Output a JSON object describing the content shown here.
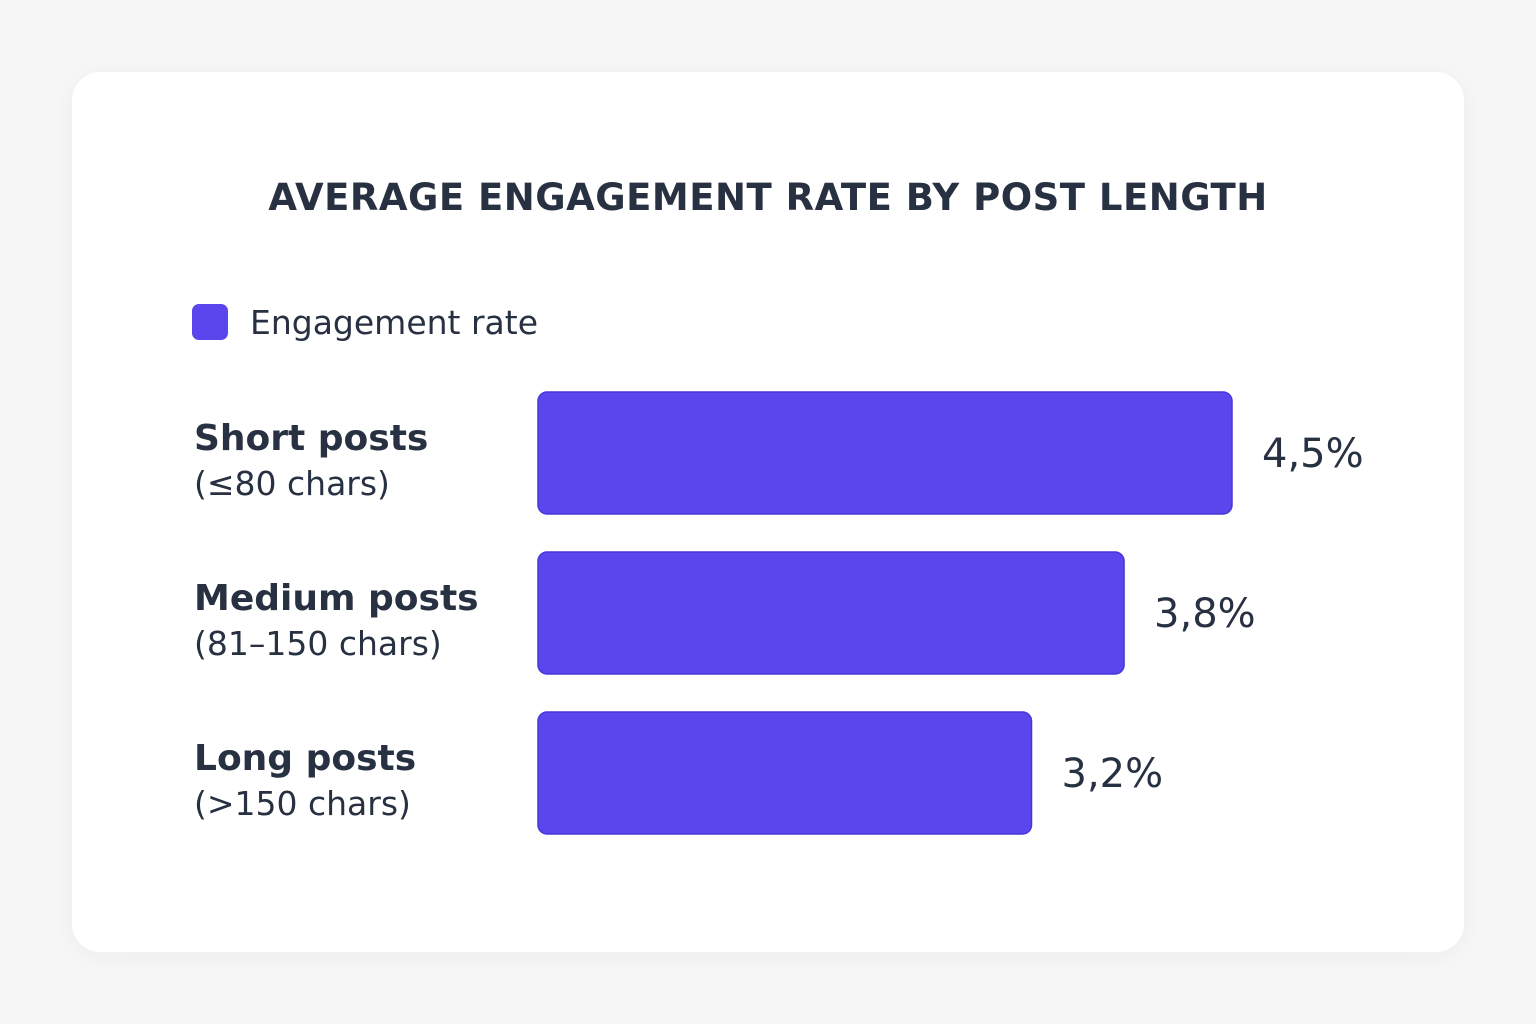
{
  "chart_data": {
    "type": "bar",
    "orientation": "horizontal",
    "title": "AVERAGE ENGAGEMENT RATE BY POST LENGTH",
    "legend": {
      "label": "Engagement rate",
      "position": "top-left"
    },
    "categories": [
      {
        "name": "Short posts",
        "description": "(≤80 chars)"
      },
      {
        "name": "Medium posts",
        "description": "(81–150 chars)"
      },
      {
        "name": "Long posts",
        "description": "(>150 chars)"
      }
    ],
    "series": [
      {
        "name": "Engagement rate",
        "values": [
          4.5,
          3.8,
          3.2
        ],
        "labels": [
          "4,5%",
          "3,8%",
          "3,2%"
        ]
      }
    ],
    "unit": "%",
    "xlim": [
      0,
      4.5
    ],
    "xaxis_visible": false,
    "grid": false
  },
  "colors": {
    "bar": "#5b45ec",
    "bar_border": "#4a36d6",
    "text": "#283142",
    "card": "#ffffff",
    "background": "#f7f7f8"
  }
}
